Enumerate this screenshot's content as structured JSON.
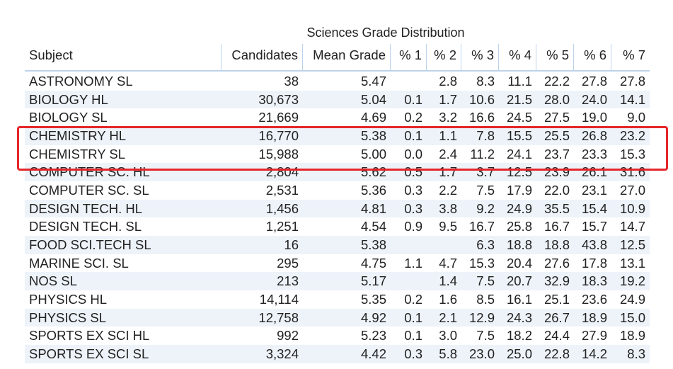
{
  "title": "Sciences Grade Distribution",
  "table": {
    "header": [
      "Subject",
      "Candidates",
      "Mean Grade",
      "% 1",
      "% 2",
      "% 3",
      "% 4",
      "% 5",
      "% 6",
      "% 7"
    ],
    "rows": [
      [
        "ASTRONOMY SL",
        "38",
        "5.47",
        null,
        "2.8",
        "8.3",
        "11.1",
        "22.2",
        "27.8",
        "27.8"
      ],
      [
        "BIOLOGY HL",
        "30,673",
        "5.04",
        "0.1",
        "1.7",
        "10.6",
        "21.5",
        "28.0",
        "24.0",
        "14.1"
      ],
      [
        "BIOLOGY SL",
        "21,669",
        "4.69",
        "0.2",
        "3.2",
        "16.6",
        "24.5",
        "27.5",
        "19.0",
        "9.0"
      ],
      [
        "CHEMISTRY HL",
        "16,770",
        "5.38",
        "0.1",
        "1.1",
        "7.8",
        "15.5",
        "25.5",
        "26.8",
        "23.2"
      ],
      [
        "CHEMISTRY SL",
        "15,988",
        "5.00",
        "0.0",
        "2.4",
        "11.2",
        "24.1",
        "23.7",
        "23.3",
        "15.3"
      ],
      [
        "COMPUTER SC. HL",
        "2,804",
        "5.62",
        "0.5",
        "1.7",
        "3.7",
        "12.5",
        "23.9",
        "26.1",
        "31.6"
      ],
      [
        "COMPUTER SC. SL",
        "2,531",
        "5.36",
        "0.3",
        "2.2",
        "7.5",
        "17.9",
        "22.0",
        "23.1",
        "27.0"
      ],
      [
        "DESIGN TECH. HL",
        "1,456",
        "4.81",
        "0.3",
        "3.8",
        "9.2",
        "24.9",
        "35.5",
        "15.4",
        "10.9"
      ],
      [
        "DESIGN TECH. SL",
        "1,251",
        "4.54",
        "0.9",
        "9.5",
        "16.7",
        "25.8",
        "16.7",
        "15.7",
        "14.7"
      ],
      [
        "FOOD SCI.TECH SL",
        "16",
        "5.38",
        null,
        null,
        "6.3",
        "18.8",
        "18.8",
        "43.8",
        "12.5"
      ],
      [
        "MARINE SCI. SL",
        "295",
        "4.75",
        "1.1",
        "4.7",
        "15.3",
        "20.4",
        "27.6",
        "17.8",
        "13.1"
      ],
      [
        "NOS SL",
        "213",
        "5.17",
        null,
        "1.4",
        "7.5",
        "20.7",
        "32.9",
        "18.3",
        "19.2"
      ],
      [
        "PHYSICS HL",
        "14,114",
        "5.35",
        "0.2",
        "1.6",
        "8.5",
        "16.1",
        "25.1",
        "23.6",
        "24.9"
      ],
      [
        "PHYSICS SL",
        "12,758",
        "4.92",
        "0.1",
        "2.1",
        "12.9",
        "24.3",
        "26.7",
        "18.9",
        "15.0"
      ],
      [
        "SPORTS EX SCI HL",
        "992",
        "5.23",
        "0.1",
        "3.0",
        "7.5",
        "18.2",
        "24.4",
        "27.9",
        "18.9"
      ],
      [
        "SPORTS EX SCI SL",
        "3,324",
        "4.42",
        "0.3",
        "5.8",
        "23.0",
        "25.0",
        "22.8",
        "14.2",
        "8.3"
      ]
    ]
  }
}
